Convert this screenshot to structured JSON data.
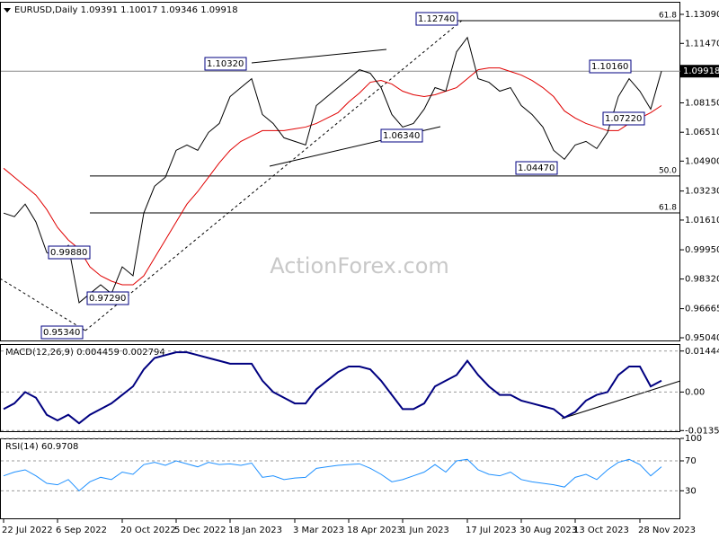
{
  "chart_data": [
    {
      "type": "line",
      "title": "EURUSD,Daily  1.09391 1.10017 1.09346 1.09918",
      "color": "#000000",
      "values": [
        1.02,
        1.018,
        1.025,
        1.015,
        0.998,
        0.995,
        1.002,
        0.97,
        0.975,
        0.98,
        0.975,
        0.99,
        0.985,
        1.02,
        1.035,
        1.04,
        1.055,
        1.058,
        1.055,
        1.065,
        1.07,
        1.085,
        1.09,
        1.095,
        1.075,
        1.07,
        1.062,
        1.06,
        1.058,
        1.08,
        1.085,
        1.09,
        1.095,
        1.1,
        1.098,
        1.09,
        1.075,
        1.068,
        1.07,
        1.078,
        1.09,
        1.088,
        1.11,
        1.118,
        1.095,
        1.093,
        1.088,
        1.09,
        1.08,
        1.075,
        1.068,
        1.055,
        1.05,
        1.058,
        1.06,
        1.056,
        1.065,
        1.085,
        1.095,
        1.088,
        1.078,
        1.0992
      ],
      "moving_average": {
        "color": "#e00000",
        "values": [
          1.045,
          1.04,
          1.035,
          1.03,
          1.022,
          1.012,
          1.005,
          1.0,
          0.99,
          0.985,
          0.982,
          0.98,
          0.98,
          0.985,
          0.995,
          1.005,
          1.015,
          1.025,
          1.032,
          1.04,
          1.048,
          1.055,
          1.06,
          1.063,
          1.066,
          1.066,
          1.066,
          1.067,
          1.068,
          1.07,
          1.073,
          1.076,
          1.082,
          1.087,
          1.093,
          1.094,
          1.092,
          1.088,
          1.086,
          1.085,
          1.086,
          1.088,
          1.09,
          1.095,
          1.1,
          1.101,
          1.101,
          1.099,
          1.097,
          1.094,
          1.09,
          1.085,
          1.077,
          1.073,
          1.07,
          1.068,
          1.066,
          1.066,
          1.07,
          1.073,
          1.076,
          1.08
        ]
      },
      "ylim": [
        0.9484,
        1.1379
      ],
      "yticks": [
        {
          "value": 1.1309,
          "label": "1.13090"
        },
        {
          "value": 1.1147,
          "label": "1.11470"
        },
        {
          "value": 1.0815,
          "label": "1.08150"
        },
        {
          "value": 1.0651,
          "label": "1.06510"
        },
        {
          "value": 1.049,
          "label": "1.04900"
        },
        {
          "value": 1.0323,
          "label": "1.03230"
        },
        {
          "value": 1.0161,
          "label": "1.01610"
        },
        {
          "value": 0.9995,
          "label": "0.99950"
        },
        {
          "value": 0.9832,
          "label": "0.98320"
        },
        0.96665,
        {
          "value": 0.9504,
          "label": "0.95040"
        }
      ],
      "last_price": 1.09918,
      "fib_levels": [
        {
          "label": "61.8",
          "value": 1.1274
        },
        {
          "label": "50.0",
          "value": 1.0407
        },
        {
          "label": "61.8",
          "value": 1.0201
        }
      ],
      "annotations": [
        "1.10320",
        "1.12740",
        "1.10160",
        "1.06340",
        "1.07220",
        "1.04470",
        "0.99880",
        "0.97290",
        "0.95340"
      ],
      "watermark": "ActionForex.com"
    },
    {
      "type": "line",
      "title": "MACD(12,26,9)  0.004459  0.002794",
      "color": "#000080",
      "values": [
        -0.006,
        -0.004,
        0.0,
        -0.002,
        -0.008,
        -0.01,
        -0.008,
        -0.011,
        -0.008,
        -0.006,
        -0.004,
        -0.001,
        0.002,
        0.008,
        0.012,
        0.013,
        0.014,
        0.014,
        0.013,
        0.012,
        0.011,
        0.01,
        0.01,
        0.01,
        0.004,
        0.0,
        -0.002,
        -0.004,
        -0.004,
        0.001,
        0.004,
        0.007,
        0.009,
        0.009,
        0.008,
        0.004,
        -0.001,
        -0.006,
        -0.006,
        -0.004,
        0.002,
        0.004,
        0.006,
        0.011,
        0.006,
        0.002,
        -0.001,
        -0.001,
        -0.003,
        -0.004,
        -0.005,
        -0.006,
        -0.009,
        -0.007,
        -0.003,
        -0.001,
        0.0,
        0.006,
        0.009,
        0.009,
        0.002,
        0.004
      ],
      "ylim": [
        -0.0141,
        0.0169
      ],
      "yticks": [
        0.014446,
        {
          "value": 0,
          "label": "0.00"
        },
        -0.013558
      ],
      "grid": true
    },
    {
      "type": "line",
      "title": "RSI(14)  60.9708",
      "color": "#1e90ff",
      "values": [
        50,
        55,
        58,
        50,
        40,
        38,
        45,
        30,
        42,
        48,
        45,
        55,
        52,
        65,
        68,
        64,
        70,
        66,
        62,
        68,
        65,
        66,
        64,
        67,
        48,
        50,
        45,
        47,
        48,
        60,
        62,
        64,
        65,
        66,
        60,
        52,
        42,
        45,
        50,
        55,
        65,
        55,
        70,
        72,
        58,
        52,
        50,
        55,
        45,
        42,
        40,
        38,
        35,
        48,
        52,
        45,
        58,
        68,
        72,
        65,
        50,
        62
      ],
      "ylim": [
        -8,
        100
      ],
      "yticks": [
        100,
        70,
        30
      ],
      "grid": true,
      "categories": [
        "22 Jul 2022",
        null,
        null,
        null,
        null,
        "6 Sep 2022",
        null,
        null,
        null,
        null,
        null,
        "20 Oct 2022",
        null,
        null,
        null,
        null,
        "5 Dec 2022",
        null,
        null,
        null,
        null,
        "18 Jan 2023",
        null,
        null,
        null,
        null,
        null,
        "3 Mar 2023",
        null,
        null,
        null,
        null,
        "18 Apr 2023",
        null,
        null,
        null,
        null,
        "1 Jun 2023",
        null,
        null,
        null,
        null,
        null,
        "17 Jul 2023",
        null,
        null,
        null,
        null,
        "30 Aug 2023",
        null,
        null,
        null,
        null,
        "13 Oct 2023",
        null,
        null,
        null,
        null,
        null,
        "28 Nov 2023",
        null,
        null
      ]
    }
  ]
}
